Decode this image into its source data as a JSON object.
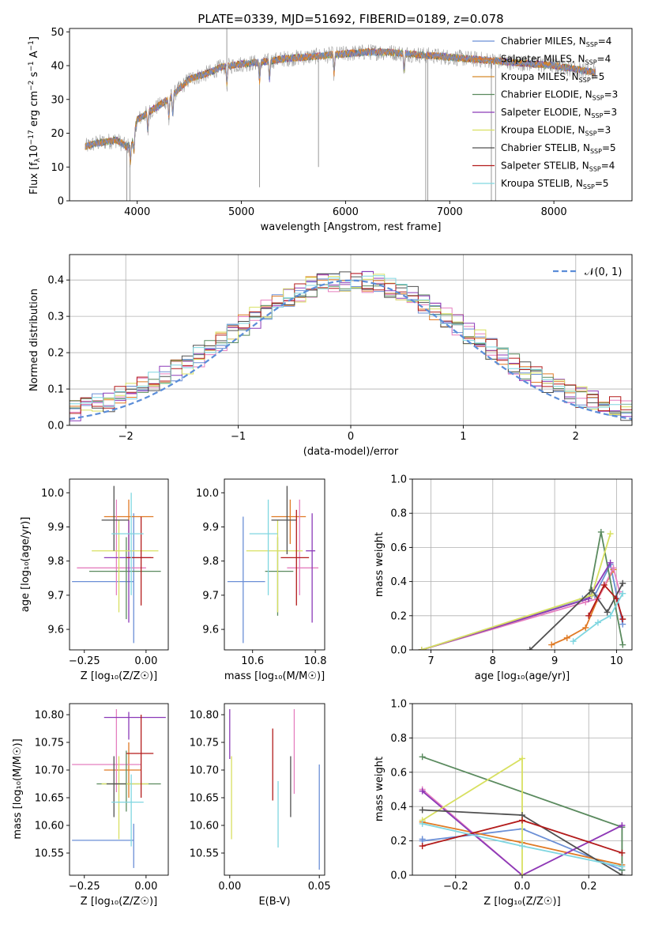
{
  "figure_title": "PLATE=0339, MJD=51692, FIBERID=0189, z=0.078",
  "colors": {
    "c_miles": "#6b8fd6",
    "s_miles": "#e07a25",
    "k_miles": "#d78a2a",
    "c_elodie": "#5a8a5e",
    "s_elodie": "#8c3ab8",
    "k_elodie": "#d8e060",
    "c_stelib": "#505050",
    "s_stelib": "#b31b1b",
    "k_stelib": "#7fd6e0",
    "pink": "#e57fbf",
    "grey": "#a0a0a0"
  },
  "chart_data": [
    {
      "id": "spectrum",
      "type": "line",
      "title": "PLATE=0339, MJD=51692, FIBERID=0189, z=0.078",
      "xlabel": "wavelength [Angstrom, rest frame]",
      "ylabel_parts": [
        "Flux [f",
        "λ",
        "10",
        "−17",
        " erg cm",
        "−2",
        " s",
        "−1",
        " A",
        "−1",
        "]"
      ],
      "xlim": [
        3350,
        8750
      ],
      "ylim": [
        0,
        51
      ],
      "xticks": [
        4000,
        5000,
        6000,
        7000,
        8000
      ],
      "yticks": [
        0,
        10,
        20,
        30,
        40,
        50
      ],
      "legend": [
        {
          "label": "Chabrier MILES, N",
          "sub": "SSP",
          "tail": "=4",
          "color": "#6b8fd6"
        },
        {
          "label": "Salpeter MILES, N",
          "sub": "SSP",
          "tail": "=4",
          "color": "#e07a25"
        },
        {
          "label": "Kroupa MILES, N",
          "sub": "SSP",
          "tail": "=5",
          "color": "#d78a2a"
        },
        {
          "label": "Chabrier ELODIE, N",
          "sub": "SSP",
          "tail": "=3",
          "color": "#5a8a5e"
        },
        {
          "label": "Salpeter ELODIE, N",
          "sub": "SSP",
          "tail": "=3",
          "color": "#8c3ab8"
        },
        {
          "label": "Kroupa ELODIE, N",
          "sub": "SSP",
          "tail": "=3",
          "color": "#d8e060"
        },
        {
          "label": "Chabrier STELIB, N",
          "sub": "SSP",
          "tail": "=5",
          "color": "#505050"
        },
        {
          "label": "Salpeter STELIB, N",
          "sub": "SSP",
          "tail": "=4",
          "color": "#b31b1b"
        },
        {
          "label": "Kroupa STELIB, N",
          "sub": "SSP",
          "tail": "=5",
          "color": "#7fd6e0"
        }
      ],
      "legend_position": "right",
      "continuum": {
        "x": [
          3500,
          3600,
          3700,
          3800,
          3900,
          3950,
          4000,
          4100,
          4200,
          4300,
          4400,
          4500,
          4600,
          4700,
          4800,
          4900,
          5000,
          5200,
          5400,
          5600,
          5800,
          6000,
          6200,
          6400,
          6600,
          6800,
          7000,
          7200,
          7400,
          7600,
          7800,
          8000,
          8200,
          8400
        ],
        "y": [
          16,
          17,
          17.5,
          18,
          16,
          17,
          24,
          26,
          28,
          30,
          33,
          36,
          37,
          38,
          39.5,
          40,
          40.5,
          41,
          42,
          42.5,
          43,
          43.5,
          44,
          44,
          43.5,
          43,
          42.5,
          42,
          41.5,
          41,
          40.5,
          40,
          39,
          38
        ]
      },
      "absorption_lines": [
        3934,
        3969,
        4102,
        4304,
        4341,
        4861,
        5175,
        5270,
        5890,
        6563,
        8498,
        8542,
        8662
      ],
      "spikes": [
        {
          "x": 3900,
          "y": 0
        },
        {
          "x": 3930,
          "y": 0
        },
        {
          "x": 4860,
          "y": 51
        },
        {
          "x": 5175,
          "y": 4
        },
        {
          "x": 5740,
          "y": 10
        },
        {
          "x": 6770,
          "y": 0
        },
        {
          "x": 6790,
          "y": 0
        },
        {
          "x": 7400,
          "y": 0
        },
        {
          "x": 7440,
          "y": 0
        }
      ],
      "model_x_range": [
        3500,
        8400
      ]
    },
    {
      "id": "residuals",
      "type": "histogram",
      "xlabel": "(data-model)/error",
      "ylabel": "Normed distribution",
      "xlim": [
        -2.5,
        2.5
      ],
      "ylim": [
        0,
        0.47
      ],
      "xticks": [
        -2,
        -1,
        0,
        1,
        2
      ],
      "yticks": [
        0.0,
        0.1,
        0.2,
        0.3,
        0.4
      ],
      "grid": true,
      "legend": [
        {
          "label": "𝒩(0, 1)",
          "style": "dashed",
          "color": "#5b8dd8"
        }
      ],
      "legend_position": "upper right",
      "bin_width": 0.1
    },
    {
      "id": "z_vs_age",
      "type": "errorbar",
      "xlabel": "Z [log₁₀(Z/Z☉)]",
      "ylabel": "age  [log₁₀(age/yr)]",
      "xlim": [
        -0.31,
        0.09
      ],
      "ylim": [
        9.54,
        10.04
      ],
      "xticks": [
        -0.25,
        0.0
      ],
      "yticks": [
        9.6,
        9.7,
        9.8,
        9.9,
        10.0
      ],
      "xtick_labels": [
        "−0.25",
        "0.00"
      ],
      "points": [
        {
          "x": -0.05,
          "y": 9.74,
          "xerr": [
            0.25,
            0.0
          ],
          "yerr": [
            0.18,
            0.2
          ],
          "color": "#6b8fd6"
        },
        {
          "x": -0.07,
          "y": 9.93,
          "xerr": [
            0.1,
            0.1
          ],
          "yerr": [
            0.1,
            0.05
          ],
          "color": "#e07a25"
        },
        {
          "x": -0.12,
          "y": 9.78,
          "xerr": [
            0.16,
            0.12
          ],
          "yerr": [
            0.08,
            0.2
          ],
          "color": "#e57fbf"
        },
        {
          "x": -0.08,
          "y": 9.77,
          "xerr": [
            0.15,
            0.14
          ],
          "yerr": [
            0.14,
            0.1
          ],
          "color": "#5a8a5e"
        },
        {
          "x": -0.07,
          "y": 9.81,
          "xerr": [
            0.1,
            0.09
          ],
          "yerr": [
            0.19,
            0.11
          ],
          "color": "#8c3ab8"
        },
        {
          "x": -0.11,
          "y": 9.83,
          "xerr": [
            0.11,
            0.16
          ],
          "yerr": [
            0.18,
            0.09
          ],
          "color": "#d8e060"
        },
        {
          "x": -0.13,
          "y": 9.92,
          "xerr": [
            0.05,
            0.06
          ],
          "yerr": [
            0.09,
            0.1
          ],
          "color": "#505050"
        },
        {
          "x": -0.02,
          "y": 9.81,
          "xerr": [
            0.06,
            0.05
          ],
          "yerr": [
            0.14,
            0.12
          ],
          "color": "#b31b1b"
        },
        {
          "x": -0.06,
          "y": 9.88,
          "xerr": [
            0.08,
            0.05
          ],
          "yerr": [
            0.18,
            0.12
          ],
          "color": "#7fd6e0"
        }
      ]
    },
    {
      "id": "mass_vs_age",
      "type": "errorbar",
      "xlabel": "mass [log₁₀(M/M☉)]",
      "xlim": [
        10.51,
        10.83
      ],
      "ylim": [
        9.54,
        10.04
      ],
      "xticks": [
        10.6,
        10.8
      ],
      "yticks": [
        9.6,
        9.7,
        9.8,
        9.9,
        10.0
      ],
      "xtick_labels": [
        "10.6",
        "10.8"
      ],
      "points": [
        {
          "x": 10.57,
          "y": 9.74,
          "xerr": [
            0.05,
            0.07
          ],
          "yerr": [
            0.18,
            0.19
          ],
          "color": "#6b8fd6"
        },
        {
          "x": 10.72,
          "y": 9.93,
          "xerr": [
            0.06,
            0.05
          ],
          "yerr": [
            0.08,
            0.05
          ],
          "color": "#e07a25"
        },
        {
          "x": 10.75,
          "y": 9.78,
          "xerr": [
            0.04,
            0.06
          ],
          "yerr": [
            0.08,
            0.2
          ],
          "color": "#e57fbf"
        },
        {
          "x": 10.68,
          "y": 9.77,
          "xerr": [
            0.04,
            0.05
          ],
          "yerr": [
            0.13,
            0.1
          ],
          "color": "#5a8a5e"
        },
        {
          "x": 10.79,
          "y": 9.83,
          "xerr": [
            0.02,
            0.01
          ],
          "yerr": [
            0.21,
            0.11
          ],
          "color": "#8c3ab8"
        },
        {
          "x": 10.68,
          "y": 9.83,
          "xerr": [
            0.1,
            0.08
          ],
          "yerr": [
            0.18,
            0.09
          ],
          "color": "#d8e060"
        },
        {
          "x": 10.71,
          "y": 9.92,
          "xerr": [
            0.05,
            0.03
          ],
          "yerr": [
            0.1,
            0.1
          ],
          "color": "#505050"
        },
        {
          "x": 10.74,
          "y": 9.81,
          "xerr": [
            0.05,
            0.04
          ],
          "yerr": [
            0.14,
            0.14
          ],
          "color": "#b31b1b"
        },
        {
          "x": 10.65,
          "y": 9.88,
          "xerr": [
            0.06,
            0.03
          ],
          "yerr": [
            0.18,
            0.1
          ],
          "color": "#7fd6e0"
        }
      ]
    },
    {
      "id": "age_vs_weight",
      "type": "line",
      "xlabel": "age  [log₁₀(age/yr)]",
      "ylabel": "mass weight",
      "xlim": [
        6.7,
        10.25
      ],
      "ylim": [
        0,
        1.0
      ],
      "xticks": [
        7,
        8,
        9,
        10
      ],
      "yticks": [
        0.0,
        0.2,
        0.4,
        0.6,
        0.8,
        1.0
      ],
      "grid": true,
      "series": [
        {
          "color": "#6b8fd6",
          "x": [
            6.85,
            9.45,
            9.65,
            9.9,
            10.1
          ],
          "y": [
            0.0,
            0.3,
            0.32,
            0.5,
            0.15
          ]
        },
        {
          "color": "#e07a25",
          "x": [
            8.95,
            9.2,
            9.5,
            9.7,
            9.95
          ],
          "y": [
            0.03,
            0.07,
            0.13,
            0.3,
            0.47
          ]
        },
        {
          "color": "#e57fbf",
          "x": [
            6.85,
            9.5,
            9.7,
            9.95,
            10.05
          ],
          "y": [
            0.0,
            0.28,
            0.3,
            0.48,
            0.34
          ]
        },
        {
          "color": "#5a8a5e",
          "x": [
            6.85,
            9.55,
            9.75,
            10.1
          ],
          "y": [
            0.0,
            0.3,
            0.69,
            0.03
          ]
        },
        {
          "color": "#8c3ab8",
          "x": [
            6.85,
            9.55,
            9.9
          ],
          "y": [
            0.0,
            0.3,
            0.51
          ]
        },
        {
          "color": "#d8e060",
          "x": [
            6.85,
            9.6,
            9.9
          ],
          "y": [
            0.0,
            0.32,
            0.68
          ]
        },
        {
          "color": "#505050",
          "x": [
            8.6,
            9.6,
            9.85,
            10.1
          ],
          "y": [
            0.0,
            0.35,
            0.22,
            0.39
          ]
        },
        {
          "color": "#b31b1b",
          "x": [
            9.55,
            9.8,
            10.0,
            10.1
          ],
          "y": [
            0.2,
            0.38,
            0.3,
            0.18
          ]
        },
        {
          "color": "#7fd6e0",
          "x": [
            9.3,
            9.7,
            9.9,
            10.1
          ],
          "y": [
            0.05,
            0.16,
            0.2,
            0.33
          ]
        }
      ]
    },
    {
      "id": "z_vs_mass",
      "type": "errorbar",
      "xlabel": "Z [log₁₀(Z/Z☉)]",
      "ylabel": "mass [log₁₀(M/M☉)]",
      "xlim": [
        -0.31,
        0.09
      ],
      "ylim": [
        10.51,
        10.82
      ],
      "xticks": [
        -0.25,
        0.0
      ],
      "yticks": [
        10.55,
        10.6,
        10.65,
        10.7,
        10.75,
        10.8
      ],
      "xtick_labels": [
        "−0.25",
        "0.00"
      ],
      "points": [
        {
          "x": -0.05,
          "y": 10.573,
          "xerr": [
            0.25,
            0.0
          ],
          "yerr": [
            0.05,
            0.03
          ],
          "color": "#6b8fd6"
        },
        {
          "x": -0.07,
          "y": 10.7,
          "xerr": [
            0.1,
            0.05
          ],
          "yerr": [
            0.05,
            0.05
          ],
          "color": "#e07a25"
        },
        {
          "x": -0.12,
          "y": 10.71,
          "xerr": [
            0.18,
            0.1
          ],
          "yerr": [
            0.05,
            0.1
          ],
          "color": "#e57fbf"
        },
        {
          "x": -0.08,
          "y": 10.675,
          "xerr": [
            0.12,
            0.14
          ],
          "yerr": [
            0.05,
            0.06
          ],
          "color": "#5a8a5e"
        },
        {
          "x": -0.07,
          "y": 10.795,
          "xerr": [
            0.1,
            0.15
          ],
          "yerr": [
            0.04,
            0.01
          ],
          "color": "#8c3ab8"
        },
        {
          "x": -0.11,
          "y": 10.675,
          "xerr": [
            0.07,
            0.12
          ],
          "yerr": [
            0.1,
            0.05
          ],
          "color": "#d8e060"
        },
        {
          "x": -0.13,
          "y": 10.675,
          "xerr": [
            0.03,
            0.05
          ],
          "yerr": [
            0.06,
            0.05
          ],
          "color": "#505050"
        },
        {
          "x": -0.02,
          "y": 10.73,
          "xerr": [
            0.06,
            0.05
          ],
          "yerr": [
            0.08,
            0.07
          ],
          "color": "#b31b1b"
        },
        {
          "x": -0.06,
          "y": 10.642,
          "xerr": [
            0.08,
            0.05
          ],
          "yerr": [
            0.08,
            0.05
          ],
          "color": "#7fd6e0"
        }
      ]
    },
    {
      "id": "ebv_vs_mass",
      "type": "errorbar",
      "xlabel": "E(B-V)",
      "xlim": [
        -0.003,
        0.053
      ],
      "ylim": [
        10.51,
        10.82
      ],
      "xticks": [
        0.0,
        0.05
      ],
      "yticks": [
        10.55,
        10.6,
        10.65,
        10.7,
        10.75,
        10.8
      ],
      "xtick_labels": [
        "0.00",
        "0.05"
      ],
      "points": [
        {
          "x": 0.05,
          "y": 10.61,
          "yerr": [
            0.09,
            0.1
          ],
          "color": "#6b8fd6"
        },
        {
          "x": 0.0,
          "y": 10.76,
          "yerr": [
            0.04,
            0.05
          ],
          "color": "#8c3ab8"
        },
        {
          "x": 0.001,
          "y": 10.635,
          "yerr": [
            0.06,
            0.09
          ],
          "color": "#d8e060"
        },
        {
          "x": 0.036,
          "y": 10.732,
          "yerr": [
            0.075,
            0.078
          ],
          "color": "#e57fbf"
        },
        {
          "x": 0.034,
          "y": 10.655,
          "yerr": [
            0.04,
            0.07
          ],
          "color": "#505050"
        },
        {
          "x": 0.024,
          "y": 10.71,
          "yerr": [
            0.065,
            0.065
          ],
          "color": "#b31b1b"
        },
        {
          "x": 0.027,
          "y": 10.62,
          "yerr": [
            0.06,
            0.06
          ],
          "color": "#7fd6e0"
        }
      ]
    },
    {
      "id": "z_vs_weight",
      "type": "line",
      "xlabel": "Z [log₁₀(Z/Z☉)]",
      "ylabel": "mass weight",
      "xlim": [
        -0.33,
        0.33
      ],
      "ylim": [
        0,
        1.0
      ],
      "xticks": [
        -0.2,
        0.0,
        0.2
      ],
      "yticks": [
        0.0,
        0.2,
        0.4,
        0.6,
        0.8,
        1.0
      ],
      "xtick_labels": [
        "−0.2",
        "0.0",
        "0.2"
      ],
      "grid": true,
      "series": [
        {
          "color": "#6b8fd6",
          "x": [
            -0.3,
            -0.3,
            0.0,
            0.3
          ],
          "y": [
            0.21,
            0.2,
            0.27,
            0.03
          ]
        },
        {
          "color": "#e07a25",
          "x": [
            -0.3,
            0.0,
            0.3
          ],
          "y": [
            0.31,
            0.19,
            0.06
          ]
        },
        {
          "color": "#e57fbf",
          "x": [
            -0.3,
            0.0,
            0.3
          ],
          "y": [
            0.5,
            0.0,
            0.29
          ]
        },
        {
          "color": "#5a8a5e",
          "x": [
            -0.3,
            0.3,
            0.3
          ],
          "y": [
            0.69,
            0.28,
            0.03
          ]
        },
        {
          "color": "#8c3ab8",
          "x": [
            -0.3,
            0.0,
            0.3
          ],
          "y": [
            0.49,
            0.0,
            0.29
          ]
        },
        {
          "color": "#d8e060",
          "x": [
            -0.3,
            0.0,
            0.0
          ],
          "y": [
            0.32,
            0.68,
            0.0
          ]
        },
        {
          "color": "#505050",
          "x": [
            -0.3,
            0.0,
            0.3
          ],
          "y": [
            0.38,
            0.35,
            0.0
          ]
        },
        {
          "color": "#b31b1b",
          "x": [
            -0.3,
            0.0,
            0.3
          ],
          "y": [
            0.17,
            0.32,
            0.13
          ]
        },
        {
          "color": "#7fd6e0",
          "x": [
            -0.3,
            0.0,
            0.3
          ],
          "y": [
            0.3,
            0.17,
            0.05
          ]
        }
      ]
    }
  ]
}
